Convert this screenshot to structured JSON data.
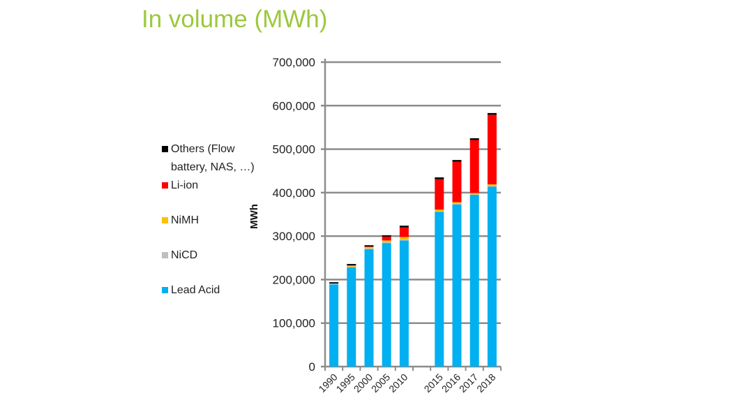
{
  "chart_data": {
    "type": "bar",
    "stacked": true,
    "title": "In volume (MWh)",
    "xlabel": "",
    "ylabel": "MWh",
    "ylim": [
      0,
      700000
    ],
    "yticks": [
      0,
      100000,
      200000,
      300000,
      400000,
      500000,
      600000,
      700000
    ],
    "ytick_labels": [
      "0",
      "100,000",
      "200,000",
      "300,000",
      "400,000",
      "500,000",
      "600,000",
      "700,000"
    ],
    "grid": true,
    "legend_position": "left",
    "categories": [
      "1990",
      "1995",
      "2000",
      "2005",
      "2010",
      "",
      "2015",
      "2016",
      "2017",
      "2018"
    ],
    "series": [
      {
        "name": "Lead Acid",
        "color": "#00b0f0",
        "values": [
          189000,
          228000,
          270000,
          284000,
          290000,
          null,
          356000,
          373000,
          395000,
          414000
        ]
      },
      {
        "name": "NiCD",
        "color": "#bfbfbf",
        "values": [
          2000,
          2000,
          2000,
          2000,
          2000,
          null,
          1000,
          1000,
          1000,
          1000
        ]
      },
      {
        "name": "NiMH",
        "color": "#ffc000",
        "values": [
          0,
          2000,
          3000,
          4000,
          6000,
          null,
          4000,
          4000,
          3000,
          4000
        ]
      },
      {
        "name": "Li-ion",
        "color": "#ff0000",
        "values": [
          0,
          1000,
          1000,
          9000,
          22000,
          null,
          70000,
          93000,
          122000,
          160000
        ]
      },
      {
        "name": "Others (Flow battery, NAS, ...)",
        "color": "#000000",
        "values": [
          3000,
          3000,
          3000,
          3000,
          4000,
          null,
          4000,
          4000,
          4000,
          4000
        ]
      }
    ],
    "legend_lines": {
      "others_line1": "Others (Flow",
      "others_line2": "battery, NAS, …)",
      "liion": "Li-ion",
      "nimh": "NiMH",
      "nicd": "NiCD",
      "lead": "Lead Acid"
    }
  }
}
